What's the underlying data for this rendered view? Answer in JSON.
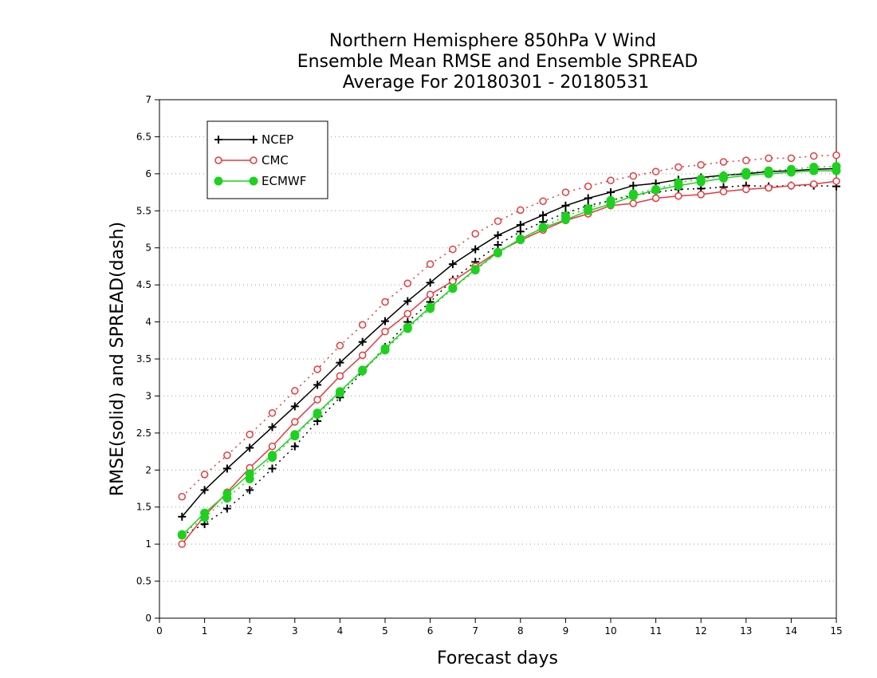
{
  "chart_data": {
    "type": "line",
    "title": [
      "Northern Hemisphere 850hPa V Wind",
      "Ensemble Mean RMSE and Ensemble SPREAD",
      "Average For 20180301 - 20180531"
    ],
    "xlabel": "Forecast days",
    "ylabel": "RMSE(solid) and SPREAD(dash)",
    "xlim": [
      0,
      15
    ],
    "ylim": [
      0,
      7
    ],
    "xticks": [
      "0",
      "1",
      "2",
      "3",
      "4",
      "5",
      "6",
      "7",
      "8",
      "9",
      "10",
      "11",
      "12",
      "13",
      "14",
      "15"
    ],
    "yticks": [
      "0",
      "0.5",
      "1",
      "1.5",
      "2",
      "2.5",
      "3",
      "3.5",
      "4",
      "4.5",
      "5",
      "5.5",
      "6",
      "6.5",
      "7"
    ],
    "grid": "horizontal dotted",
    "legend_position": "top-left",
    "x": [
      0.5,
      1,
      1.5,
      2,
      2.5,
      3,
      3.5,
      4,
      4.5,
      5,
      5.5,
      6,
      6.5,
      7,
      7.5,
      8,
      8.5,
      9,
      9.5,
      10,
      10.5,
      11,
      11.5,
      12,
      12.5,
      13,
      13.5,
      14,
      14.5,
      15
    ],
    "series": [
      {
        "name": "NCEP",
        "color": "#000000",
        "marker": "plus",
        "rmse": [
          1.37,
          1.73,
          2.02,
          2.3,
          2.58,
          2.86,
          3.15,
          3.45,
          3.73,
          4.01,
          4.28,
          4.53,
          4.78,
          4.98,
          5.17,
          5.31,
          5.44,
          5.57,
          5.67,
          5.75,
          5.84,
          5.87,
          5.92,
          5.95,
          5.98,
          6.0,
          6.03,
          6.04,
          6.06,
          6.07
        ],
        "spread": [
          1.12,
          1.27,
          1.48,
          1.73,
          2.02,
          2.32,
          2.66,
          2.98,
          3.33,
          3.66,
          4.0,
          4.27,
          4.57,
          4.81,
          5.04,
          5.22,
          5.35,
          5.47,
          5.57,
          5.64,
          5.71,
          5.75,
          5.79,
          5.8,
          5.82,
          5.84,
          5.83,
          5.84,
          5.84,
          5.83
        ]
      },
      {
        "name": "CMC",
        "color": "#e8383c",
        "marker": "circle",
        "rmse": [
          1.0,
          1.38,
          1.7,
          2.03,
          2.32,
          2.65,
          2.95,
          3.27,
          3.55,
          3.87,
          4.11,
          4.37,
          4.55,
          4.75,
          4.95,
          5.1,
          5.24,
          5.37,
          5.46,
          5.57,
          5.6,
          5.67,
          5.7,
          5.72,
          5.76,
          5.79,
          5.81,
          5.84,
          5.86,
          5.9
        ],
        "spread": [
          1.64,
          1.94,
          2.2,
          2.48,
          2.77,
          3.07,
          3.36,
          3.68,
          3.96,
          4.27,
          4.52,
          4.78,
          4.98,
          5.19,
          5.36,
          5.51,
          5.63,
          5.75,
          5.83,
          5.91,
          5.97,
          6.03,
          6.09,
          6.12,
          6.16,
          6.18,
          6.21,
          6.21,
          6.24,
          6.25
        ]
      },
      {
        "name": "ECMWF",
        "color": "#1fd11f",
        "marker": "filled-circle",
        "rmse": [
          1.12,
          1.42,
          1.68,
          1.95,
          2.2,
          2.48,
          2.77,
          3.06,
          3.35,
          3.64,
          3.93,
          4.2,
          4.46,
          4.71,
          4.94,
          5.12,
          5.27,
          5.38,
          5.5,
          5.59,
          5.7,
          5.78,
          5.84,
          5.89,
          5.94,
          5.98,
          6.0,
          6.02,
          6.04,
          6.04
        ],
        "spread": [
          1.13,
          1.36,
          1.62,
          1.88,
          2.17,
          2.46,
          2.75,
          3.04,
          3.34,
          3.62,
          3.91,
          4.18,
          4.45,
          4.7,
          4.93,
          5.11,
          5.28,
          5.43,
          5.53,
          5.64,
          5.73,
          5.79,
          5.88,
          5.93,
          5.97,
          6.02,
          6.04,
          6.06,
          6.09,
          6.1
        ]
      }
    ]
  }
}
